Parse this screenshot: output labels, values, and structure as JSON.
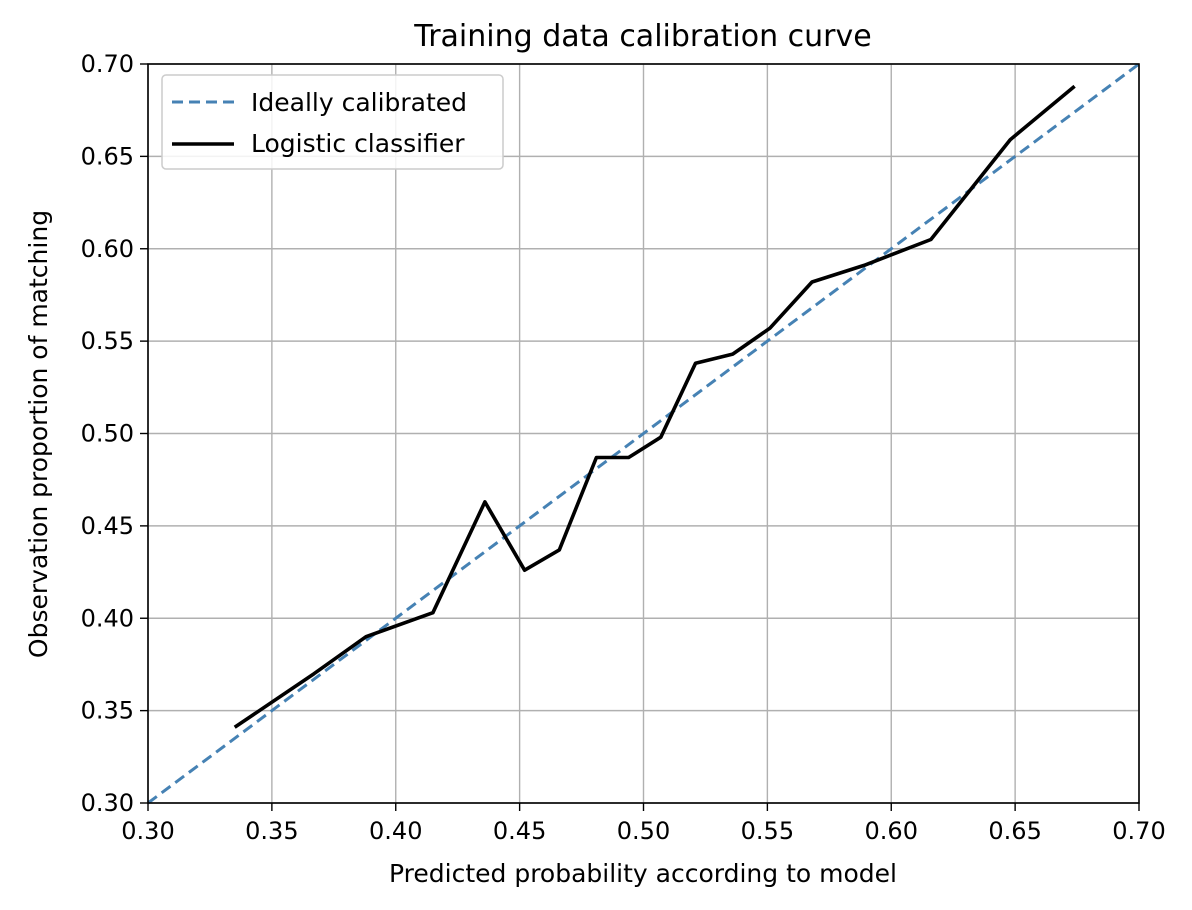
{
  "chart_data": {
    "type": "line",
    "title": "Training data calibration curve",
    "xlabel": "Predicted probability according to model",
    "ylabel": "Observation proportion of matching",
    "xlim": [
      0.3,
      0.7
    ],
    "ylim": [
      0.3,
      0.7
    ],
    "xticks": [
      "0.30",
      "0.35",
      "0.40",
      "0.45",
      "0.50",
      "0.55",
      "0.60",
      "0.65",
      "0.70"
    ],
    "yticks": [
      "0.30",
      "0.35",
      "0.40",
      "0.45",
      "0.50",
      "0.55",
      "0.60",
      "0.65",
      "0.70"
    ],
    "grid": true,
    "legend_position": "upper-left",
    "series": [
      {
        "name": "Ideally calibrated",
        "style": "dashed",
        "color": "#4682b4",
        "x": [
          0.3,
          0.7
        ],
        "y": [
          0.3,
          0.7
        ]
      },
      {
        "name": "Logistic classifier",
        "style": "solid",
        "color": "#000000",
        "x": [
          0.335,
          0.367,
          0.388,
          0.415,
          0.436,
          0.452,
          0.466,
          0.481,
          0.494,
          0.507,
          0.521,
          0.536,
          0.551,
          0.568,
          0.589,
          0.616,
          0.648,
          0.674
        ],
        "y": [
          0.341,
          0.37,
          0.39,
          0.403,
          0.463,
          0.426,
          0.437,
          0.487,
          0.487,
          0.498,
          0.538,
          0.543,
          0.557,
          0.582,
          0.591,
          0.605,
          0.659,
          0.688
        ]
      }
    ]
  }
}
